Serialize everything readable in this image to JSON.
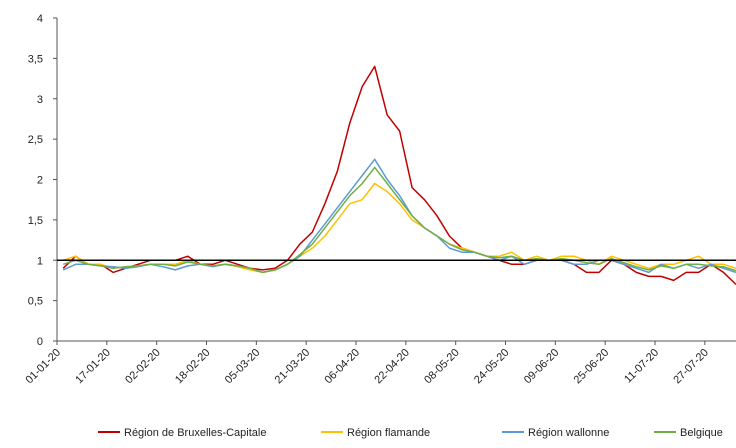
{
  "chart_data": {
    "type": "line",
    "x": [
      "2020-01-03",
      "2020-01-07",
      "2020-01-11",
      "2020-01-15",
      "2020-01-19",
      "2020-01-23",
      "2020-01-27",
      "2020-01-31",
      "2020-02-04",
      "2020-02-08",
      "2020-02-12",
      "2020-02-16",
      "2020-02-20",
      "2020-02-24",
      "2020-02-28",
      "2020-03-03",
      "2020-03-07",
      "2020-03-11",
      "2020-03-15",
      "2020-03-19",
      "2020-03-23",
      "2020-03-27",
      "2020-03-31",
      "2020-04-04",
      "2020-04-08",
      "2020-04-12",
      "2020-04-16",
      "2020-04-20",
      "2020-04-24",
      "2020-04-28",
      "2020-05-02",
      "2020-05-06",
      "2020-05-10",
      "2020-05-14",
      "2020-05-18",
      "2020-05-22",
      "2020-05-26",
      "2020-05-30",
      "2020-06-03",
      "2020-06-07",
      "2020-06-11",
      "2020-06-15",
      "2020-06-19",
      "2020-06-23",
      "2020-06-27",
      "2020-07-01",
      "2020-07-05",
      "2020-07-09",
      "2020-07-13",
      "2020-07-17",
      "2020-07-21",
      "2020-07-25",
      "2020-07-29",
      "2020-08-02",
      "2020-08-06"
    ],
    "series": [
      {
        "name": "Région de Bruxelles-Capitale",
        "color": "#c00000",
        "values": [
          0.9,
          1.05,
          0.95,
          0.95,
          0.85,
          0.9,
          0.95,
          1.0,
          1.0,
          1.0,
          1.05,
          0.95,
          0.95,
          1.0,
          0.95,
          0.9,
          0.88,
          0.9,
          1.0,
          1.2,
          1.35,
          1.7,
          2.1,
          2.7,
          3.15,
          3.4,
          2.8,
          2.6,
          1.9,
          1.75,
          1.55,
          1.3,
          1.15,
          1.1,
          1.05,
          1.0,
          0.95,
          0.95,
          1.0,
          1.0,
          1.0,
          0.95,
          0.85,
          0.85,
          1.0,
          0.95,
          0.85,
          0.8,
          0.8,
          0.75,
          0.85,
          0.85,
          0.95,
          0.85,
          0.7
        ]
      },
      {
        "name": "Région flamande",
        "color": "#ffc000",
        "values": [
          1.0,
          1.05,
          0.95,
          0.95,
          0.9,
          0.92,
          0.93,
          0.95,
          0.95,
          0.95,
          1.0,
          0.95,
          0.93,
          0.95,
          0.92,
          0.88,
          0.85,
          0.88,
          0.95,
          1.05,
          1.15,
          1.3,
          1.5,
          1.7,
          1.75,
          1.95,
          1.85,
          1.7,
          1.5,
          1.4,
          1.3,
          1.2,
          1.15,
          1.1,
          1.05,
          1.05,
          1.1,
          1.0,
          1.05,
          1.0,
          1.05,
          1.05,
          1.0,
          0.95,
          1.05,
          1.0,
          0.95,
          0.9,
          0.95,
          0.95,
          1.0,
          1.05,
          0.95,
          0.95,
          0.9
        ]
      },
      {
        "name": "Région wallonne",
        "color": "#5b9bd5",
        "values": [
          0.88,
          0.95,
          0.95,
          0.93,
          0.92,
          0.9,
          0.92,
          0.95,
          0.92,
          0.88,
          0.93,
          0.95,
          0.92,
          0.95,
          0.93,
          0.9,
          0.85,
          0.88,
          0.95,
          1.05,
          1.25,
          1.45,
          1.65,
          1.85,
          2.05,
          2.25,
          2.0,
          1.8,
          1.55,
          1.4,
          1.3,
          1.15,
          1.1,
          1.1,
          1.05,
          1.0,
          1.05,
          0.95,
          1.0,
          1.0,
          1.0,
          0.95,
          0.95,
          1.0,
          1.0,
          0.95,
          0.9,
          0.85,
          0.95,
          0.9,
          0.95,
          0.9,
          0.95,
          0.9,
          0.85
        ]
      },
      {
        "name": "Belgique",
        "color": "#70ad47",
        "values": [
          0.95,
          1.0,
          0.95,
          0.93,
          0.9,
          0.92,
          0.93,
          0.95,
          0.95,
          0.93,
          0.98,
          0.95,
          0.93,
          0.95,
          0.93,
          0.9,
          0.85,
          0.88,
          0.95,
          1.07,
          1.2,
          1.4,
          1.6,
          1.8,
          1.95,
          2.15,
          1.95,
          1.75,
          1.55,
          1.4,
          1.3,
          1.2,
          1.13,
          1.1,
          1.05,
          1.03,
          1.05,
          1.0,
          1.02,
          1.0,
          1.02,
          1.0,
          0.97,
          0.95,
          1.02,
          0.97,
          0.92,
          0.88,
          0.93,
          0.9,
          0.95,
          0.95,
          0.93,
          0.92,
          0.87
        ]
      }
    ],
    "xlim": [
      "2020-01-01",
      "2020-08-06"
    ],
    "xticks": [
      {
        "value": "2020-01-01",
        "label": "01-01-20"
      },
      {
        "value": "2020-01-17",
        "label": "17-01-20"
      },
      {
        "value": "2020-02-02",
        "label": "02-02-20"
      },
      {
        "value": "2020-02-18",
        "label": "18-02-20"
      },
      {
        "value": "2020-03-05",
        "label": "05-03-20"
      },
      {
        "value": "2020-03-21",
        "label": "21-03-20"
      },
      {
        "value": "2020-04-06",
        "label": "06-04-20"
      },
      {
        "value": "2020-04-22",
        "label": "22-04-20"
      },
      {
        "value": "2020-05-08",
        "label": "08-05-20"
      },
      {
        "value": "2020-05-24",
        "label": "24-05-20"
      },
      {
        "value": "2020-06-09",
        "label": "09-06-20"
      },
      {
        "value": "2020-06-25",
        "label": "25-06-20"
      },
      {
        "value": "2020-07-11",
        "label": "11-07-20"
      },
      {
        "value": "2020-07-27",
        "label": "27-07-20"
      }
    ],
    "ylim": [
      0,
      4
    ],
    "yticks": [
      0,
      {
        "value": 0.5,
        "label": "0,5"
      },
      1,
      {
        "value": 1.5,
        "label": "1,5"
      },
      2,
      {
        "value": 2.5,
        "label": "2,5"
      },
      3,
      {
        "value": 3.5,
        "label": "3,5"
      },
      4
    ],
    "reference_line": 1,
    "legend": "bottom"
  }
}
